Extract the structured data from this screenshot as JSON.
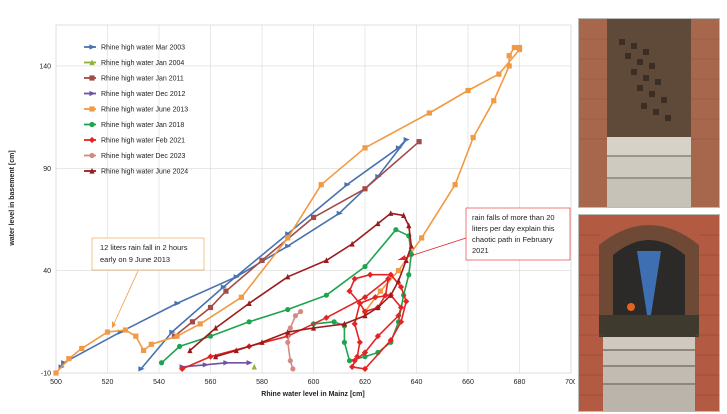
{
  "chart_data": {
    "type": "line",
    "title": "",
    "xlabel": "Rhine water level in Mainz [cm]",
    "ylabel": "water level in basement [cm]",
    "xlim": [
      500,
      700
    ],
    "ylim": [
      -10,
      160
    ],
    "x_ticks": [
      "500",
      "520",
      "540",
      "560",
      "580",
      "600",
      "620",
      "640",
      "660",
      "680",
      "700"
    ],
    "y_ticks": [
      "-10",
      "40",
      "90",
      "140"
    ],
    "grid": true,
    "legend_position": "top-left",
    "series": [
      {
        "name": "Rhine high water Mar 2003",
        "color": "#4a72b0",
        "marker": "arrow",
        "points": [
          [
            502,
            -7
          ],
          [
            503,
            -5
          ],
          [
            525,
            10
          ],
          [
            547,
            24
          ],
          [
            570,
            37
          ],
          [
            590,
            52
          ],
          [
            610,
            68
          ],
          [
            625,
            86
          ],
          [
            636,
            104
          ],
          [
            633,
            100
          ],
          [
            613,
            82
          ],
          [
            590,
            58
          ],
          [
            565,
            32
          ],
          [
            545,
            10
          ],
          [
            533,
            -8
          ]
        ]
      },
      {
        "name": "Rhine high water Jan 2004",
        "color": "#8fb23b",
        "marker": "triangle",
        "points": [
          [
            577,
            -7
          ]
        ]
      },
      {
        "name": "Rhine high water Jan 2011",
        "color": "#a24b48",
        "marker": "square",
        "points": [
          [
            641,
            103
          ],
          [
            620,
            80
          ],
          [
            600,
            66
          ],
          [
            580,
            45
          ],
          [
            566,
            30
          ],
          [
            560,
            22
          ],
          [
            553,
            15
          ],
          [
            546,
            8
          ]
        ]
      },
      {
        "name": "Rhine high water Dec 2012",
        "color": "#7052a1",
        "marker": "arrow",
        "points": [
          [
            549,
            -7
          ],
          [
            558,
            -6
          ],
          [
            566,
            -5
          ],
          [
            575,
            -5
          ]
        ]
      },
      {
        "name": "Rhine high water June 2013",
        "color": "#f29a43",
        "marker": "square",
        "points": [
          [
            500,
            -10
          ],
          [
            505,
            -3
          ],
          [
            510,
            2
          ],
          [
            520,
            10
          ],
          [
            527,
            11
          ],
          [
            531,
            8
          ],
          [
            534,
            1
          ],
          [
            537,
            4
          ],
          [
            547,
            8
          ],
          [
            556,
            14
          ],
          [
            572,
            27
          ],
          [
            590,
            56
          ],
          [
            603,
            82
          ],
          [
            620,
            100
          ],
          [
            645,
            117
          ],
          [
            660,
            128
          ],
          [
            672,
            136
          ],
          [
            680,
            148
          ],
          [
            680,
            149
          ],
          [
            678,
            149
          ],
          [
            676,
            145
          ],
          [
            676,
            140
          ],
          [
            670,
            123
          ],
          [
            662,
            105
          ],
          [
            655,
            82
          ],
          [
            642,
            56
          ],
          [
            633,
            40
          ],
          [
            626,
            30
          ],
          [
            620,
            20
          ]
        ]
      },
      {
        "name": "Rhine high water Jan 2018",
        "color": "#1ea34f",
        "marker": "circle",
        "points": [
          [
            541,
            -5
          ],
          [
            548,
            3
          ],
          [
            560,
            8
          ],
          [
            575,
            15
          ],
          [
            590,
            21
          ],
          [
            605,
            28
          ],
          [
            620,
            42
          ],
          [
            632,
            60
          ],
          [
            637,
            57
          ],
          [
            638,
            48
          ],
          [
            637,
            38
          ],
          [
            635,
            28
          ],
          [
            633,
            15
          ],
          [
            630,
            5
          ],
          [
            625,
            0
          ],
          [
            620,
            -2
          ],
          [
            614,
            -4
          ],
          [
            612,
            5
          ],
          [
            612,
            13
          ],
          [
            608,
            15
          ],
          [
            600,
            14
          ]
        ]
      },
      {
        "name": "Rhine high water Feb 2021",
        "color": "#e42424",
        "marker": "diamond",
        "points": [
          [
            549,
            -8
          ],
          [
            560,
            -2
          ],
          [
            575,
            3
          ],
          [
            590,
            8
          ],
          [
            605,
            17
          ],
          [
            620,
            27
          ],
          [
            629,
            36
          ],
          [
            628,
            28
          ],
          [
            625,
            22
          ],
          [
            620,
            20
          ],
          [
            618,
            24
          ],
          [
            616,
            14
          ],
          [
            618,
            5
          ],
          [
            617,
            -2
          ],
          [
            615,
            -7
          ],
          [
            620,
            -8
          ],
          [
            630,
            6
          ],
          [
            634,
            15
          ],
          [
            636,
            25
          ],
          [
            634,
            32
          ],
          [
            630,
            38
          ],
          [
            622,
            38
          ],
          [
            616,
            36
          ],
          [
            614,
            30
          ],
          [
            618,
            24
          ],
          [
            624,
            27
          ],
          [
            630,
            28
          ],
          [
            634,
            22
          ],
          [
            633,
            18
          ],
          [
            625,
            8
          ],
          [
            620,
            0
          ],
          [
            616,
            -4
          ]
        ]
      },
      {
        "name": "Rhine high water Dec 2023",
        "color": "#d48a83",
        "marker": "circle",
        "points": [
          [
            592,
            -8
          ],
          [
            591,
            -4
          ],
          [
            590,
            5
          ],
          [
            591,
            12
          ],
          [
            593,
            18
          ],
          [
            595,
            20
          ]
        ]
      },
      {
        "name": "Rhine high water June 2024",
        "color": "#9b1b1d",
        "marker": "triangle",
        "points": [
          [
            552,
            1
          ],
          [
            562,
            12
          ],
          [
            575,
            24
          ],
          [
            590,
            37
          ],
          [
            605,
            45
          ],
          [
            615,
            53
          ],
          [
            625,
            63
          ],
          [
            630,
            68
          ],
          [
            635,
            67
          ],
          [
            637,
            62
          ],
          [
            638,
            52
          ],
          [
            636,
            45
          ],
          [
            633,
            35
          ],
          [
            630,
            28
          ],
          [
            625,
            22
          ],
          [
            620,
            18
          ],
          [
            612,
            14
          ],
          [
            600,
            12
          ],
          [
            590,
            10
          ],
          [
            580,
            5
          ],
          [
            570,
            1
          ],
          [
            562,
            -2
          ]
        ]
      }
    ],
    "annotations": [
      {
        "lines": [
          "12 liters rain fall in 2 hours",
          "early on 9 June 2013"
        ]
      },
      {
        "lines": [
          "rain falls of more than 20",
          "liters per day explain this",
          "chaotic path in February",
          "2021"
        ]
      }
    ]
  },
  "photos": [
    {
      "description": "basement stairs, water marks"
    },
    {
      "description": "flooded stairway with blue cone"
    }
  ]
}
